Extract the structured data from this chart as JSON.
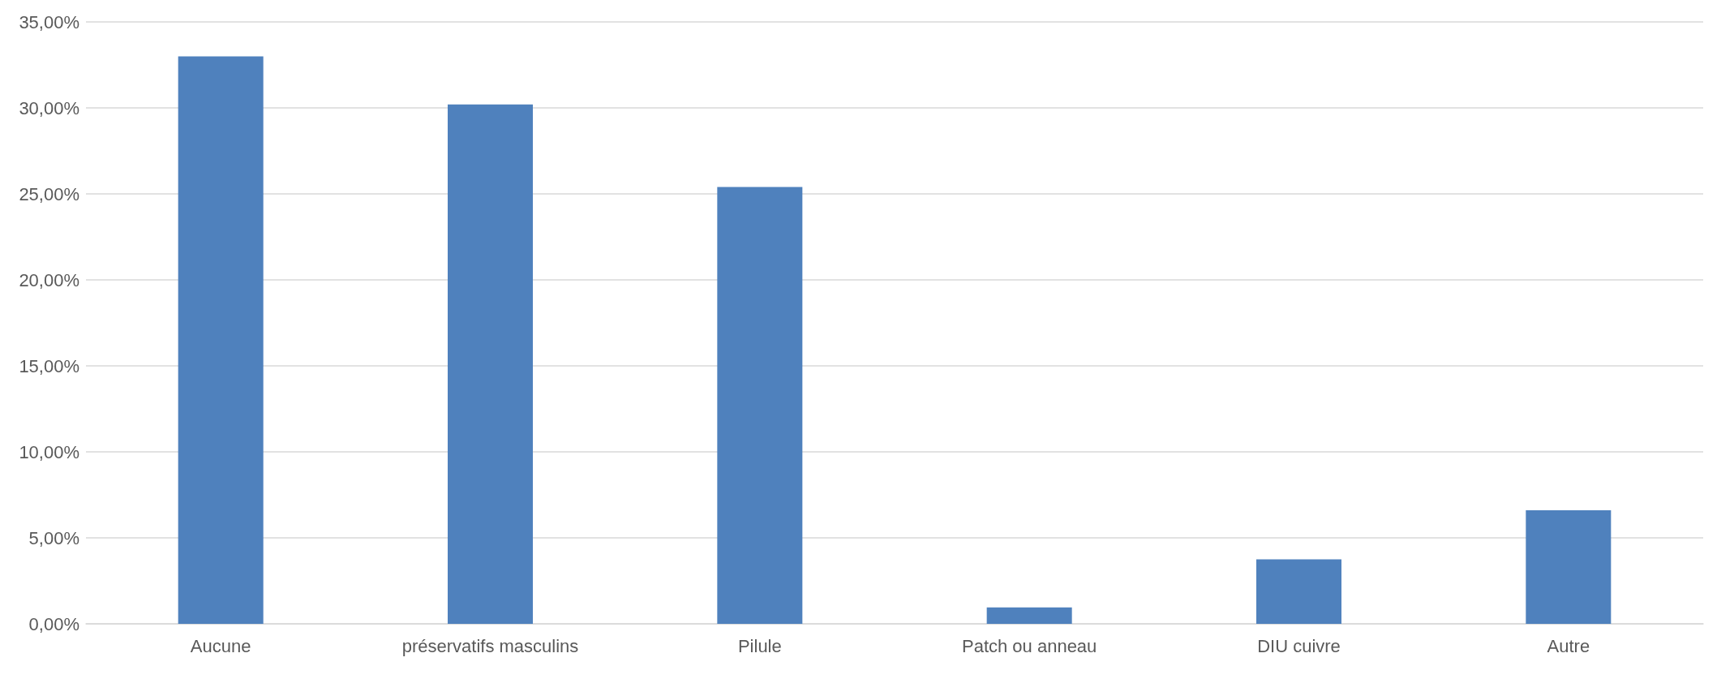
{
  "chart_data": {
    "type": "bar",
    "categories": [
      "Aucune",
      "préservatifs masculins",
      "Pilule",
      "Patch ou anneau",
      "DIU cuivre",
      "Autre"
    ],
    "values": [
      33.0,
      30.2,
      25.4,
      0.95,
      3.75,
      6.6
    ],
    "color": "#4f81bd",
    "ylim": [
      0,
      35
    ],
    "yticks": [
      {
        "value": 0,
        "label": "0,00%"
      },
      {
        "value": 5,
        "label": "5,00%"
      },
      {
        "value": 10,
        "label": "10,00%"
      },
      {
        "value": 15,
        "label": "15,00%"
      },
      {
        "value": 20,
        "label": "20,00%"
      },
      {
        "value": 25,
        "label": "25,00%"
      },
      {
        "value": 30,
        "label": "30,00%"
      },
      {
        "value": 35,
        "label": "35,00%"
      }
    ],
    "grid": "y"
  }
}
